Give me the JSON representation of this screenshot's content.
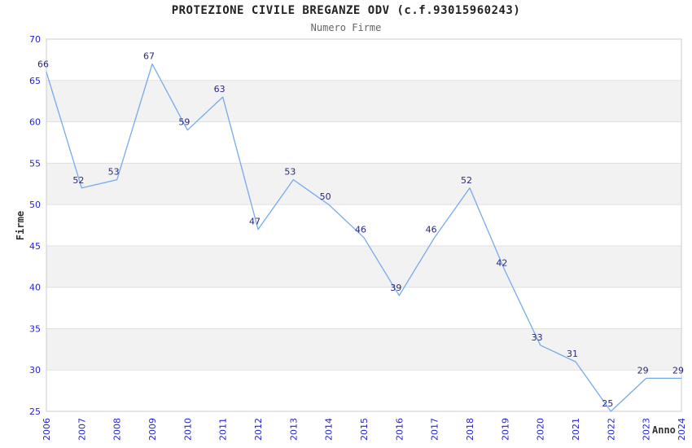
{
  "title": "PROTEZIONE CIVILE BREGANZE ODV (c.f.93015960243)",
  "subtitle": "Numero Firme",
  "chart_data": {
    "type": "line",
    "x": [
      2006,
      2007,
      2008,
      2009,
      2010,
      2011,
      2012,
      2013,
      2014,
      2015,
      2016,
      2017,
      2018,
      2019,
      2020,
      2021,
      2022,
      2023,
      2024
    ],
    "series": [
      {
        "name": "Numero Firme",
        "values": [
          66,
          52,
          53,
          67,
          59,
          63,
          47,
          53,
          50,
          46,
          39,
          46,
          52,
          42,
          33,
          31,
          25,
          29,
          29
        ]
      }
    ],
    "title": "PROTEZIONE CIVILE BREGANZE ODV (c.f.93015960243)",
    "subtitle": "Numero Firme",
    "xlabel": "Anno",
    "ylabel": "Firme",
    "ylim": [
      25,
      70
    ],
    "ytick_step": 5,
    "yticks": [
      25,
      30,
      35,
      40,
      45,
      50,
      55,
      60,
      65,
      70
    ],
    "grid": "horizontal-lines-with-alternating-bands",
    "legend_position": "none",
    "point_labels_shown": true,
    "colors": {
      "line": "#75aaec",
      "point_label": "#28287d",
      "tick_label": "#2424cc",
      "axis_title": "#333333",
      "title": "#222222",
      "subtitle": "#666666",
      "band": "#f2f2f2",
      "gridline": "#e0e0e0",
      "plot_border": "#cccccc",
      "background": "#ffffff"
    }
  }
}
